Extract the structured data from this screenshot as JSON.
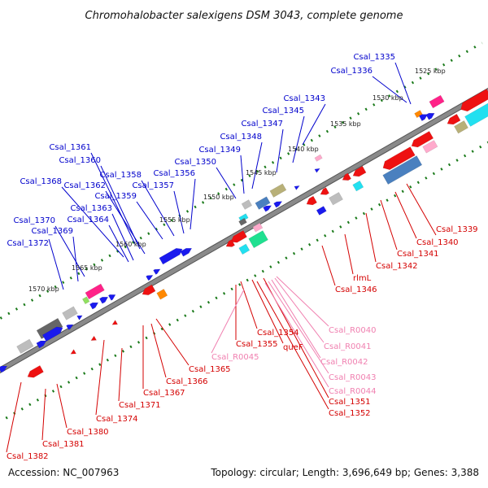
{
  "title": "Chromohalobacter salexigens DSM 3043, complete genome",
  "footer": {
    "accession": "Accession: NC_007963",
    "summary": "Topology: circular; Length: 3,696,649 bp; Genes: 3,388"
  },
  "colors": {
    "plus_strand_labels": "#0000cc",
    "minus_strand_labels": "#d40000",
    "rna_labels": "#f080b0",
    "backbone": "#888888"
  },
  "ticks": [
    {
      "label": "1525 kbp"
    },
    {
      "label": "1530 kbp"
    },
    {
      "label": "1535 kbp"
    },
    {
      "label": "1540 kbp"
    },
    {
      "label": "1545 kbp"
    },
    {
      "label": "1550 kbp"
    },
    {
      "label": "1555 kbp"
    },
    {
      "label": "1560 kbp"
    },
    {
      "label": "1565 kbp"
    },
    {
      "label": "1570 kbp"
    }
  ],
  "labels_plus": [
    {
      "text": "Csal_1335"
    },
    {
      "text": "Csal_1336"
    },
    {
      "text": "Csal_1343"
    },
    {
      "text": "Csal_1345"
    },
    {
      "text": "Csal_1347"
    },
    {
      "text": "Csal_1348"
    },
    {
      "text": "Csal_1349"
    },
    {
      "text": "Csal_1350"
    },
    {
      "text": "Csal_1356"
    },
    {
      "text": "Csal_1357"
    },
    {
      "text": "Csal_1358"
    },
    {
      "text": "Csal_1359"
    },
    {
      "text": "Csal_1361"
    },
    {
      "text": "Csal_1360"
    },
    {
      "text": "Csal_1362"
    },
    {
      "text": "Csal_1368"
    },
    {
      "text": "Csal_1363"
    },
    {
      "text": "Csal_1364"
    },
    {
      "text": "Csal_1370"
    },
    {
      "text": "Csal_1369"
    },
    {
      "text": "Csal_1372"
    }
  ],
  "labels_minus": [
    {
      "text": "Csal_1339"
    },
    {
      "text": "Csal_1340"
    },
    {
      "text": "Csal_1341"
    },
    {
      "text": "Csal_1342"
    },
    {
      "text": "rlmL"
    },
    {
      "text": "Csal_1346"
    },
    {
      "text": "Csal_1354"
    },
    {
      "text": "Csal_1355"
    },
    {
      "text": "queF"
    },
    {
      "text": "Csal_1365"
    },
    {
      "text": "Csal_1366"
    },
    {
      "text": "Csal_1367"
    },
    {
      "text": "Csal_1371"
    },
    {
      "text": "Csal_1374"
    },
    {
      "text": "Csal_1380"
    },
    {
      "text": "Csal_1381"
    },
    {
      "text": "Csal_1382"
    },
    {
      "text": "Csal_1351"
    },
    {
      "text": "Csal_1352"
    }
  ],
  "labels_rna": [
    {
      "text": "Csal_R0040"
    },
    {
      "text": "Csal_R0041"
    },
    {
      "text": "Csal_R0042"
    },
    {
      "text": "Csal_R0043"
    },
    {
      "text": "Csal_R0044"
    },
    {
      "text": "Csal_R0045"
    }
  ]
}
